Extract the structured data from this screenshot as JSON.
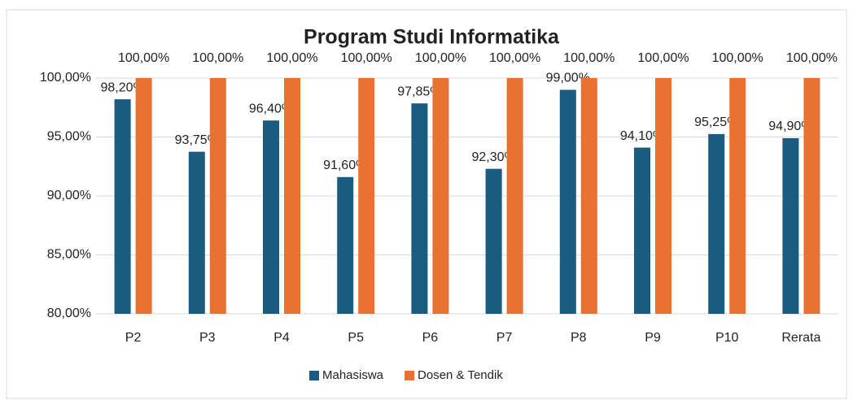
{
  "chart_data": {
    "type": "bar",
    "title": "Program Studi Informatika",
    "categories": [
      "P2",
      "P3",
      "P4",
      "P5",
      "P6",
      "P7",
      "P8",
      "P9",
      "P10",
      "Rerata"
    ],
    "series": [
      {
        "name": "Mahasiswa",
        "color": "#1c5b80",
        "values": [
          98.2,
          93.75,
          96.4,
          91.6,
          97.85,
          92.3,
          99.0,
          94.1,
          95.25,
          94.9
        ],
        "value_labels": [
          "98,20%",
          "93,75%",
          "96,40%",
          "91,60%",
          "97,85%",
          "92,30%",
          "99,00%",
          "94,10%",
          "95,25%",
          "94,90%"
        ]
      },
      {
        "name": "Dosen & Tendik",
        "color": "#e97132",
        "values": [
          100,
          100,
          100,
          100,
          100,
          100,
          100,
          100,
          100,
          100
        ],
        "value_labels": [
          "100,00%",
          "100,00%",
          "100,00%",
          "100,00%",
          "100,00%",
          "100,00%",
          "100,00%",
          "100,00%",
          "100,00%",
          "100,00%"
        ]
      }
    ],
    "ylim": [
      80,
      100
    ],
    "yticks": [
      {
        "value": 80,
        "label": "80,00%"
      },
      {
        "value": 85,
        "label": "85,00%"
      },
      {
        "value": 90,
        "label": "90,00%"
      },
      {
        "value": 95,
        "label": "95,00%"
      },
      {
        "value": 100,
        "label": "100,00%"
      }
    ],
    "grid": true,
    "legend": "bottom"
  }
}
